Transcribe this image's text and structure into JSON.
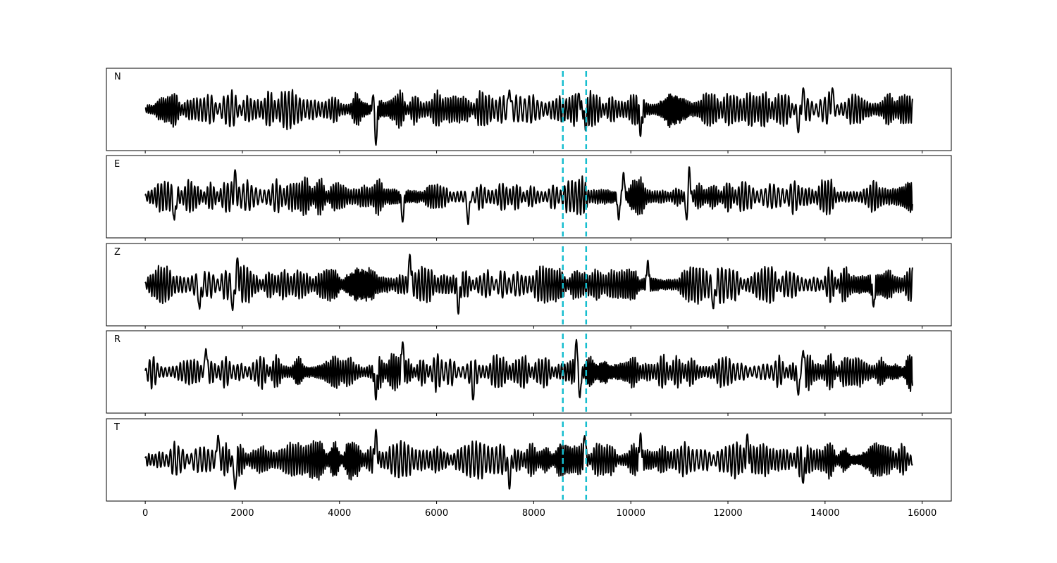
{
  "chart_data": {
    "type": "line",
    "title": "",
    "xlabel": "",
    "ylabel": "",
    "xlim": [
      -800,
      16600
    ],
    "ylim": [
      -1.15,
      1.15
    ],
    "grid": false,
    "x_ticks": [
      0,
      2000,
      4000,
      6000,
      8000,
      10000,
      12000,
      14000,
      16000
    ],
    "x_tick_labels": [
      "0",
      "2000",
      "4000",
      "6000",
      "8000",
      "10000",
      "12000",
      "14000",
      "16000"
    ],
    "y_ticks": [],
    "sample_range": [
      0,
      15800
    ],
    "markers": {
      "color": "#17becf",
      "style": "dashed",
      "x": [
        8600,
        9080
      ]
    },
    "series": [
      {
        "name": "N",
        "color": "#000000",
        "peaks": [
          {
            "x": 4700,
            "y": 0.45
          },
          {
            "x": 4750,
            "y": -1.0
          },
          {
            "x": 7500,
            "y": 0.55
          },
          {
            "x": 8930,
            "y": 0.45
          },
          {
            "x": 9070,
            "y": -0.6
          },
          {
            "x": 10200,
            "y": -0.75
          },
          {
            "x": 13550,
            "y": 0.6
          },
          {
            "x": 14150,
            "y": 0.6
          },
          {
            "x": 13450,
            "y": -0.65
          }
        ]
      },
      {
        "name": "E",
        "color": "#000000",
        "peaks": [
          {
            "x": 1850,
            "y": 0.75
          },
          {
            "x": 600,
            "y": -0.65
          },
          {
            "x": 5300,
            "y": -0.72
          },
          {
            "x": 6650,
            "y": -0.78
          },
          {
            "x": 9850,
            "y": 0.68
          },
          {
            "x": 11200,
            "y": 0.9
          },
          {
            "x": 11150,
            "y": -0.65
          },
          {
            "x": 9750,
            "y": -0.65
          }
        ]
      },
      {
        "name": "Z",
        "color": "#000000",
        "peaks": [
          {
            "x": 5450,
            "y": 0.85
          },
          {
            "x": 6450,
            "y": -0.82
          },
          {
            "x": 1800,
            "y": -0.72
          },
          {
            "x": 1120,
            "y": -0.68
          },
          {
            "x": 1900,
            "y": 0.75
          },
          {
            "x": 10350,
            "y": 0.68
          },
          {
            "x": 11700,
            "y": -0.68
          },
          {
            "x": 15000,
            "y": -0.62
          }
        ]
      },
      {
        "name": "R",
        "color": "#000000",
        "peaks": [
          {
            "x": 5300,
            "y": 0.85
          },
          {
            "x": 4750,
            "y": -0.78
          },
          {
            "x": 6750,
            "y": -0.78
          },
          {
            "x": 8880,
            "y": 0.9
          },
          {
            "x": 8950,
            "y": -0.72
          },
          {
            "x": 13450,
            "y": -0.65
          },
          {
            "x": 1250,
            "y": 0.65
          },
          {
            "x": 13550,
            "y": 0.6
          }
        ]
      },
      {
        "name": "T",
        "color": "#000000",
        "peaks": [
          {
            "x": 1850,
            "y": -0.82
          },
          {
            "x": 1500,
            "y": 0.7
          },
          {
            "x": 4750,
            "y": 0.85
          },
          {
            "x": 7500,
            "y": -0.82
          },
          {
            "x": 10200,
            "y": 0.75
          },
          {
            "x": 13550,
            "y": -0.65
          },
          {
            "x": 12400,
            "y": 0.72
          },
          {
            "x": 9050,
            "y": 0.68
          }
        ]
      }
    ]
  }
}
